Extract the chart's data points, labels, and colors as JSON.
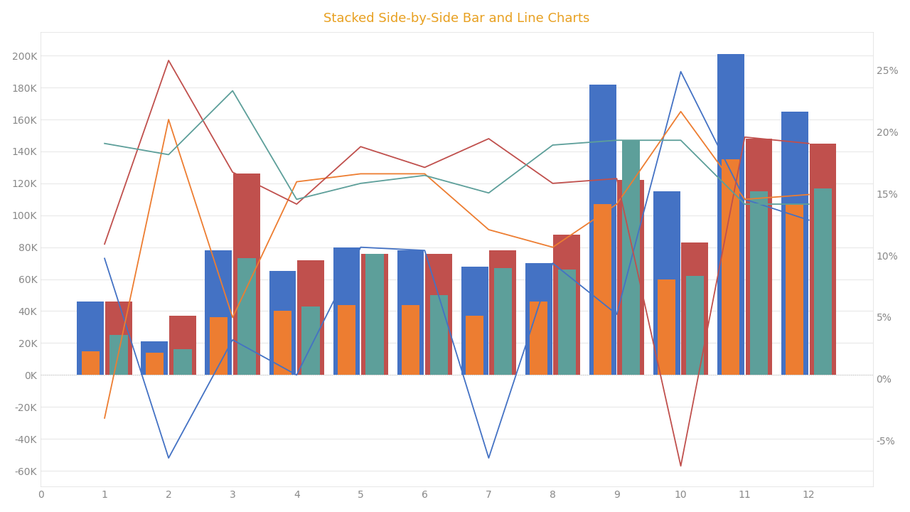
{
  "title": "Stacked Side-by-Side Bar and Line Charts",
  "title_color": "#E8A020",
  "title_fontsize": 13,
  "bg_color": "#FFFFFF",
  "grid_color": "#E8E8E8",
  "x_values": [
    1,
    2,
    3,
    4,
    5,
    6,
    7,
    8,
    9,
    10,
    11,
    12
  ],
  "bar1_color": "#4472C4",
  "bar2_color": "#ED7D31",
  "bar3_color": "#C0504D",
  "bar4_color": "#5D9F9A",
  "bar1_values": [
    46000,
    21000,
    78000,
    65000,
    80000,
    78000,
    68000,
    70000,
    182000,
    115000,
    201000,
    165000
  ],
  "bar2_values": [
    15000,
    14000,
    36000,
    40000,
    44000,
    44000,
    37000,
    46000,
    107000,
    60000,
    135000,
    107000
  ],
  "bar3_values": [
    46000,
    37000,
    126000,
    72000,
    76000,
    76000,
    78000,
    88000,
    122000,
    83000,
    148000,
    145000
  ],
  "bar4_values": [
    25000,
    16000,
    73000,
    43000,
    76000,
    50000,
    67000,
    66000,
    147000,
    62000,
    115000,
    117000
  ],
  "line1_color": "#4472C4",
  "line2_color": "#ED7D31",
  "line3_color": "#C0504D",
  "line4_color": "#5D9F9A",
  "line1_values": [
    73000,
    -52000,
    22000,
    0,
    80000,
    78000,
    -52000,
    70000,
    38000,
    190000,
    110000,
    97000
  ],
  "line2_values": [
    -27000,
    160000,
    36000,
    121000,
    126000,
    126000,
    91000,
    80000,
    107000,
    165000,
    110000,
    113000
  ],
  "line3_values": [
    82000,
    197000,
    127000,
    107000,
    143000,
    130000,
    148000,
    120000,
    123000,
    -57000,
    149000,
    145000
  ],
  "line4_values": [
    145000,
    138000,
    178000,
    110000,
    120000,
    125000,
    114000,
    144000,
    147000,
    147000,
    107000,
    107000
  ],
  "ylim_left": [
    -70000,
    215000
  ],
  "ylim_right": [
    -0.0875,
    0.28125
  ],
  "xlim": [
    0,
    13
  ]
}
